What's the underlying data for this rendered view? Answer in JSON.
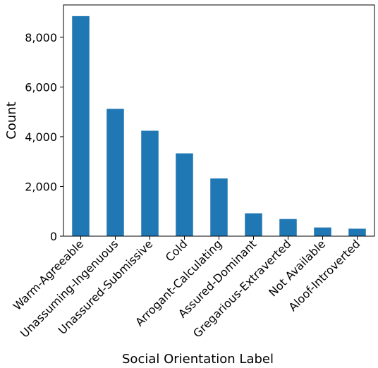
{
  "chart_data": {
    "type": "bar",
    "title": "",
    "xlabel": "Social Orientation Label",
    "ylabel": "Count",
    "categories": [
      "Warm-Agreeable",
      "Unassuming-Ingenuous",
      "Unassured-Submissive",
      "Cold",
      "Arrogant-Calculating",
      "Assured-Dominant",
      "Gregarious-Extraverted",
      "Not Available",
      "Aloof-Introverted"
    ],
    "values": [
      8850,
      5120,
      4240,
      3330,
      2320,
      920,
      690,
      350,
      300
    ],
    "ylim": [
      0,
      9300
    ],
    "yticks": [
      0,
      2000,
      4000,
      6000,
      8000
    ],
    "ytick_labels": [
      "0",
      "2,000",
      "4,000",
      "6,000",
      "8,000"
    ],
    "bar_color": "#1f77b4",
    "grid": false,
    "legend": "none"
  }
}
